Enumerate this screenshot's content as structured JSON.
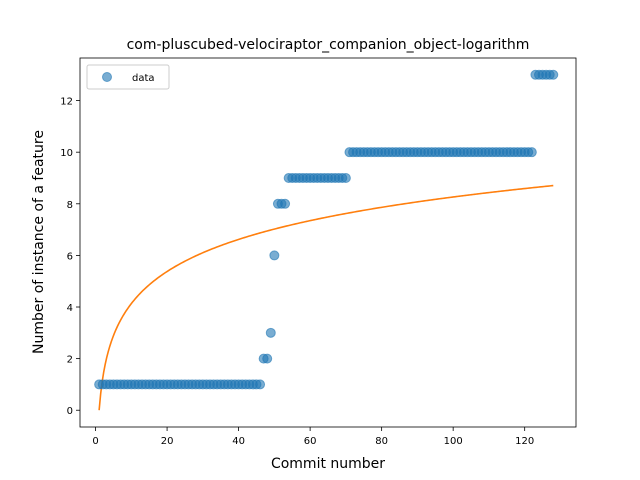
{
  "chart_data": {
    "type": "scatter",
    "title": "com-pluscubed-velociraptor_companion_object-logarithm",
    "xlabel": "Commit number",
    "ylabel": "Number of instance of a feature",
    "xlim": [
      -4.35,
      134.35
    ],
    "ylim": [
      -0.65,
      13.65
    ],
    "xticks": [
      0,
      20,
      40,
      60,
      80,
      100,
      120
    ],
    "yticks": [
      0,
      2,
      4,
      6,
      8,
      10,
      12
    ],
    "grid": false,
    "legend": {
      "placement": "top-left",
      "entries": [
        "data"
      ]
    },
    "colors": {
      "data": "#1f77b4",
      "fit": "#ff7f0e"
    },
    "series": [
      {
        "name": "data",
        "kind": "scatter",
        "x": [
          1,
          2,
          3,
          4,
          5,
          6,
          7,
          8,
          9,
          10,
          11,
          12,
          13,
          14,
          15,
          16,
          17,
          18,
          19,
          20,
          21,
          22,
          23,
          24,
          25,
          26,
          27,
          28,
          29,
          30,
          31,
          32,
          33,
          34,
          35,
          36,
          37,
          38,
          39,
          40,
          41,
          42,
          43,
          44,
          45,
          46,
          47,
          48,
          49,
          50,
          51,
          52,
          53,
          54,
          55,
          56,
          57,
          58,
          59,
          60,
          61,
          62,
          63,
          64,
          65,
          66,
          67,
          68,
          69,
          70,
          71,
          72,
          73,
          74,
          75,
          76,
          77,
          78,
          79,
          80,
          81,
          82,
          83,
          84,
          85,
          86,
          87,
          88,
          89,
          90,
          91,
          92,
          93,
          94,
          95,
          96,
          97,
          98,
          99,
          100,
          101,
          102,
          103,
          104,
          105,
          106,
          107,
          108,
          109,
          110,
          111,
          112,
          113,
          114,
          115,
          116,
          117,
          118,
          119,
          120,
          121,
          122,
          123,
          124,
          125,
          126,
          127,
          128
        ],
        "y": [
          1,
          1,
          1,
          1,
          1,
          1,
          1,
          1,
          1,
          1,
          1,
          1,
          1,
          1,
          1,
          1,
          1,
          1,
          1,
          1,
          1,
          1,
          1,
          1,
          1,
          1,
          1,
          1,
          1,
          1,
          1,
          1,
          1,
          1,
          1,
          1,
          1,
          1,
          1,
          1,
          1,
          1,
          1,
          1,
          1,
          1,
          2,
          2,
          3,
          6,
          8,
          8,
          8,
          9,
          9,
          9,
          9,
          9,
          9,
          9,
          9,
          9,
          9,
          9,
          9,
          9,
          9,
          9,
          9,
          9,
          10,
          10,
          10,
          10,
          10,
          10,
          10,
          10,
          10,
          10,
          10,
          10,
          10,
          10,
          10,
          10,
          10,
          10,
          10,
          10,
          10,
          10,
          10,
          10,
          10,
          10,
          10,
          10,
          10,
          10,
          10,
          10,
          10,
          10,
          10,
          10,
          10,
          10,
          10,
          10,
          10,
          10,
          10,
          10,
          10,
          10,
          10,
          10,
          10,
          10,
          10,
          10,
          13,
          13,
          13,
          13,
          13,
          13
        ]
      },
      {
        "name": "",
        "kind": "line",
        "function": "a*ln(x)",
        "coefficient": 1.7944,
        "x_range": [
          1,
          128
        ]
      }
    ]
  }
}
